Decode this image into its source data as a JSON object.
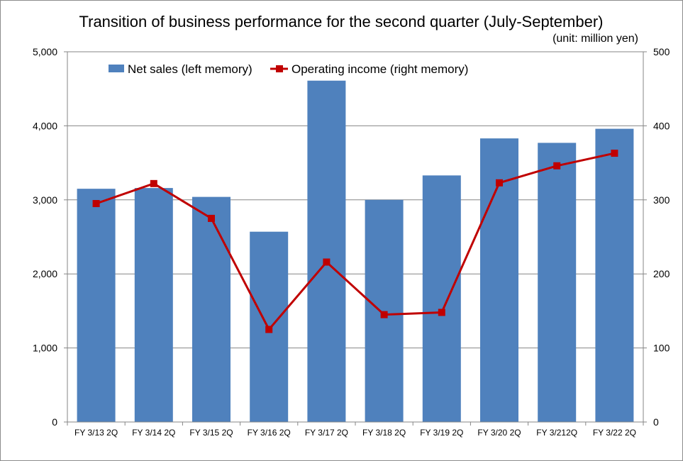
{
  "chart_data": {
    "type": "bar+line",
    "title": "Transition of business performance for the second quarter (July-September)",
    "unit_note": "(unit: million yen)",
    "categories": [
      "FY 3/13 2Q",
      "FY 3/14 2Q",
      "FY 3/15 2Q",
      "FY 3/16 2Q",
      "FY 3/17 2Q",
      "FY 3/18 2Q",
      "FY 3/19 2Q",
      "FY 3/20 2Q",
      "FY 3/212Q",
      "FY 3/22 2Q"
    ],
    "series": [
      {
        "name": "Net sales (left memory)",
        "kind": "bar",
        "axis": "left",
        "color": "#4f81bd",
        "values": [
          3150,
          3160,
          3040,
          2570,
          4610,
          3000,
          3330,
          3830,
          3770,
          3960
        ]
      },
      {
        "name": "Operating income (right memory)",
        "kind": "line",
        "axis": "right",
        "color": "#c00000",
        "values": [
          295,
          322,
          275,
          125,
          216,
          145,
          148,
          323,
          346,
          363
        ]
      }
    ],
    "left_axis": {
      "ylim": [
        0,
        5000
      ],
      "ticks": [
        "0",
        "1,000",
        "2,000",
        "3,000",
        "4,000",
        "5,000"
      ]
    },
    "right_axis": {
      "ylim": [
        0,
        500
      ],
      "ticks": [
        "0",
        "100",
        "200",
        "300",
        "400",
        "500"
      ]
    },
    "grid": "horizontal",
    "legend": "top-left"
  }
}
